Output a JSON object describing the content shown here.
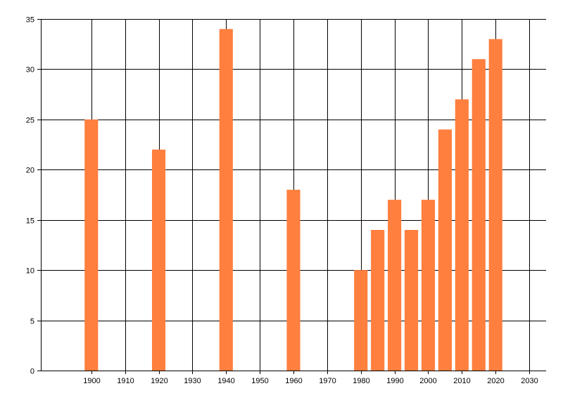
{
  "chart_data": {
    "type": "bar",
    "title": "",
    "xlabel": "",
    "ylabel": "",
    "x": [
      1900,
      1920,
      1940,
      1960,
      1980,
      1985,
      1990,
      1995,
      2000,
      2005,
      2010,
      2015,
      2020
    ],
    "values": [
      25,
      22,
      34,
      18,
      10,
      14,
      17,
      14,
      17,
      24,
      27,
      31,
      33
    ],
    "xlim": [
      1885,
      2035
    ],
    "ylim": [
      0,
      35
    ],
    "x_ticks": [
      1900,
      1910,
      1920,
      1930,
      1940,
      1950,
      1960,
      1970,
      1980,
      1990,
      2000,
      2010,
      2020,
      2030
    ],
    "y_ticks": [
      0,
      5,
      10,
      15,
      20,
      25,
      30,
      35
    ],
    "grid": true,
    "legend": "none",
    "bar_color": "#FF7F3F",
    "axis_color": "#000000",
    "grid_color": "#000000"
  }
}
